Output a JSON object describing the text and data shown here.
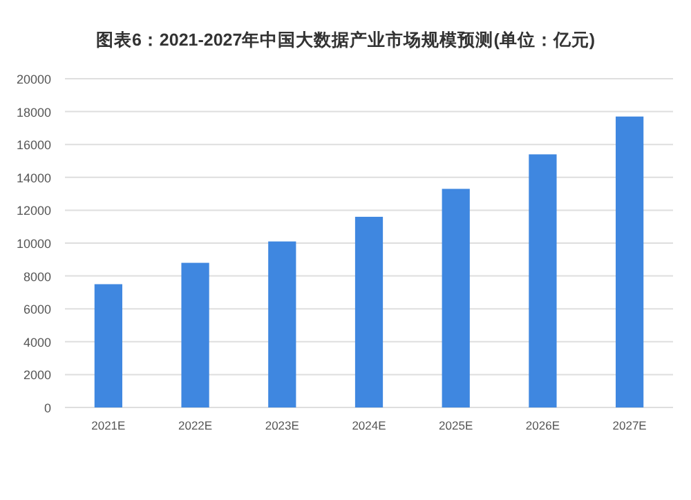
{
  "chart_data": {
    "type": "bar",
    "title": "图表6：2021-2027年中国大数据产业市场规模预测(单位：亿元)",
    "categories": [
      "2021E",
      "2022E",
      "2023E",
      "2024E",
      "2025E",
      "2026E",
      "2027E"
    ],
    "values": [
      7500,
      8800,
      10100,
      11600,
      13300,
      15400,
      17700
    ],
    "color": "#3f87e0",
    "ylim": [
      0,
      20000
    ],
    "yticks": [
      0,
      2000,
      4000,
      6000,
      8000,
      10000,
      12000,
      14000,
      16000,
      18000,
      20000
    ],
    "grid": "y"
  }
}
